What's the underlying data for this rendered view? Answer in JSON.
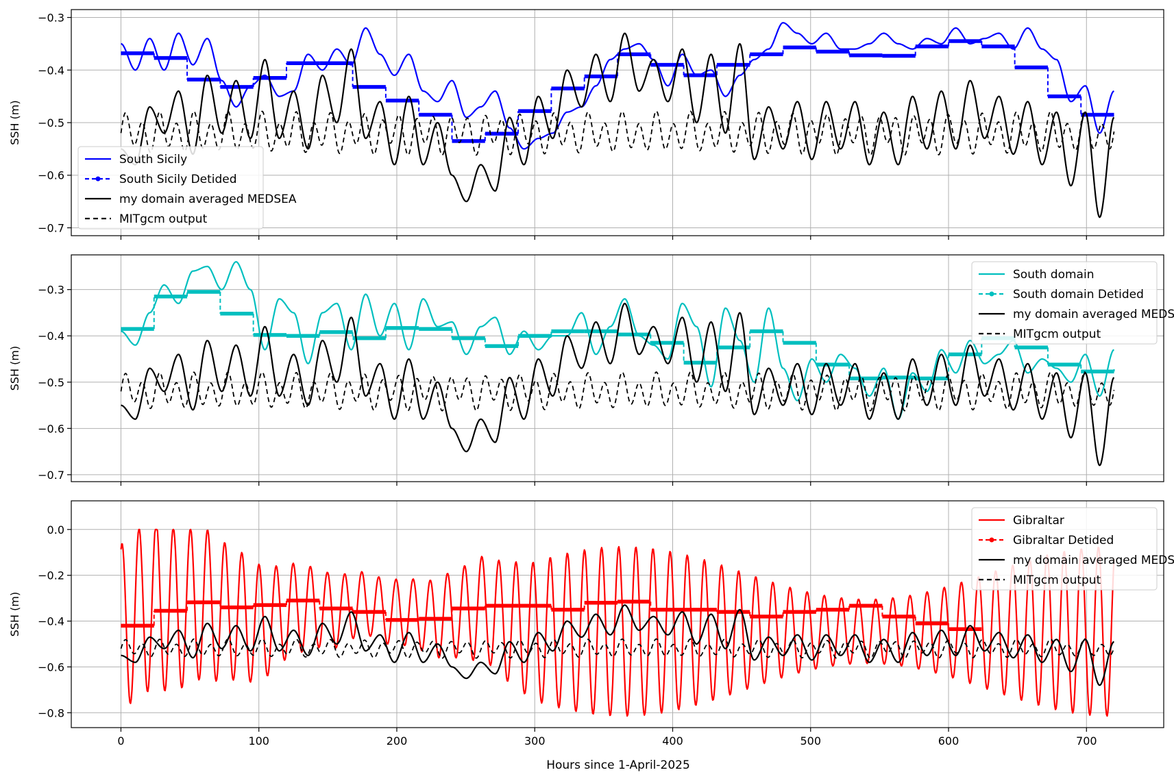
{
  "figure": {
    "xlabel": "Hours since 1-April-2025"
  },
  "colors": {
    "panel1": "#0000ff",
    "panel2": "#00bfbf",
    "panel3": "#ff0000",
    "reference": "#000000"
  },
  "chart_data": [
    {
      "type": "line",
      "ylabel": "SSH (m)",
      "xlim": [
        -36,
        756
      ],
      "ylim": [
        -0.715,
        -0.285
      ],
      "yticks": [
        -0.3,
        -0.4,
        -0.5,
        -0.6,
        -0.7
      ],
      "legend_position": "lower-left",
      "legend": [
        "South Sicily",
        "South Sicily Detided",
        "my domain averaged MEDSEA",
        "MITgcm output"
      ],
      "series": [
        {
          "name": "South Sicily",
          "style": "solid",
          "hourly": [
            -0.35,
            -0.4,
            -0.34,
            -0.4,
            -0.33,
            -0.39,
            -0.34,
            -0.42,
            -0.47,
            -0.43,
            -0.41,
            -0.45,
            -0.44,
            -0.37,
            -0.4,
            -0.36,
            -0.39,
            -0.32,
            -0.37,
            -0.41,
            -0.37,
            -0.44,
            -0.46,
            -0.42,
            -0.49,
            -0.47,
            -0.44,
            -0.51,
            -0.55,
            -0.53,
            -0.52,
            -0.48,
            -0.47,
            -0.43,
            -0.38,
            -0.36,
            -0.35,
            -0.38,
            -0.43,
            -0.37,
            -0.41,
            -0.4,
            -0.45,
            -0.41,
            -0.38,
            -0.36,
            -0.31,
            -0.33,
            -0.35,
            -0.33,
            -0.36,
            -0.36,
            -0.35,
            -0.33,
            -0.35,
            -0.36,
            -0.34,
            -0.35,
            -0.32,
            -0.35,
            -0.34,
            -0.33,
            -0.36,
            -0.32,
            -0.36,
            -0.38,
            -0.46,
            -0.43,
            -0.52,
            -0.44
          ]
        },
        {
          "name": "South Sicily Detided",
          "style": "dashed-dots",
          "daily": [
            -0.368,
            -0.377,
            -0.418,
            -0.432,
            -0.415,
            -0.387,
            -0.387,
            -0.432,
            -0.458,
            -0.485,
            -0.535,
            -0.521,
            -0.478,
            -0.435,
            -0.412,
            -0.37,
            -0.39,
            -0.41,
            -0.39,
            -0.37,
            -0.357,
            -0.365,
            -0.372,
            -0.373,
            -0.355,
            -0.345,
            -0.355,
            -0.395,
            -0.45,
            -0.485
          ]
        },
        {
          "name": "my domain averaged MEDSEA",
          "style": "solid",
          "ref": "medsea"
        },
        {
          "name": "MITgcm output",
          "style": "dashed",
          "ref": "mitgcm"
        }
      ]
    },
    {
      "type": "line",
      "ylabel": "SSH (m)",
      "xlim": [
        -36,
        756
      ],
      "ylim": [
        -0.715,
        -0.225
      ],
      "yticks": [
        -0.3,
        -0.4,
        -0.5,
        -0.6,
        -0.7
      ],
      "legend_position": "upper-right",
      "legend": [
        "South domain",
        "South domain Detided",
        "my domain averaged MEDSEA",
        "MITgcm output"
      ],
      "series": [
        {
          "name": "South domain",
          "style": "solid",
          "hourly": [
            -0.39,
            -0.42,
            -0.35,
            -0.29,
            -0.33,
            -0.26,
            -0.25,
            -0.3,
            -0.24,
            -0.3,
            -0.43,
            -0.32,
            -0.35,
            -0.46,
            -0.35,
            -0.33,
            -0.43,
            -0.31,
            -0.4,
            -0.33,
            -0.43,
            -0.32,
            -0.38,
            -0.37,
            -0.44,
            -0.38,
            -0.36,
            -0.44,
            -0.39,
            -0.43,
            -0.4,
            -0.4,
            -0.35,
            -0.44,
            -0.38,
            -0.32,
            -0.4,
            -0.42,
            -0.45,
            -0.33,
            -0.38,
            -0.51,
            -0.34,
            -0.41,
            -0.5,
            -0.34,
            -0.47,
            -0.54,
            -0.45,
            -0.5,
            -0.44,
            -0.47,
            -0.53,
            -0.47,
            -0.58,
            -0.48,
            -0.52,
            -0.43,
            -0.48,
            -0.41,
            -0.46,
            -0.44,
            -0.41,
            -0.48,
            -0.45,
            -0.47,
            -0.5,
            -0.44,
            -0.53,
            -0.43
          ]
        },
        {
          "name": "South domain Detided",
          "style": "dashed-dots",
          "daily": [
            -0.385,
            -0.315,
            -0.305,
            -0.352,
            -0.398,
            -0.4,
            -0.392,
            -0.405,
            -0.383,
            -0.385,
            -0.405,
            -0.422,
            -0.4,
            -0.39,
            -0.39,
            -0.397,
            -0.415,
            -0.458,
            -0.425,
            -0.39,
            -0.415,
            -0.462,
            -0.492,
            -0.49,
            -0.492,
            -0.44,
            -0.405,
            -0.425,
            -0.462,
            -0.477,
            -0.472
          ]
        },
        {
          "name": "my domain averaged MEDSEA",
          "style": "solid",
          "ref": "medsea"
        },
        {
          "name": "MITgcm output",
          "style": "dashed",
          "ref": "mitgcm"
        }
      ]
    },
    {
      "type": "line",
      "ylabel": "SSH (m)",
      "xlim": [
        -36,
        756
      ],
      "ylim": [
        -0.865,
        0.125
      ],
      "yticks": [
        0.0,
        -0.2,
        -0.4,
        -0.6,
        -0.8
      ],
      "legend_position": "upper-right",
      "legend": [
        "Gibraltar",
        "Gibraltar Detided",
        "my domain averaged MEDSEA",
        "MITgcm output"
      ],
      "series": [
        {
          "name": "Gibraltar",
          "style": "solid",
          "tidal": {
            "period_h": 12.42,
            "mean_offset": -0.01,
            "amp_min": 0.14,
            "amp_max": 0.37,
            "peak_max": 0.0,
            "trough_min": -0.82
          }
        },
        {
          "name": "Gibraltar Detided",
          "style": "dashed-dots",
          "daily": [
            -0.42,
            -0.355,
            -0.318,
            -0.34,
            -0.33,
            -0.31,
            -0.345,
            -0.36,
            -0.395,
            -0.39,
            -0.345,
            -0.333,
            -0.333,
            -0.35,
            -0.32,
            -0.315,
            -0.35,
            -0.35,
            -0.36,
            -0.38,
            -0.36,
            -0.35,
            -0.333,
            -0.38,
            -0.41,
            -0.435
          ]
        },
        {
          "name": "my domain averaged MEDSEA",
          "style": "solid",
          "ref": "medsea"
        },
        {
          "name": "MITgcm output",
          "style": "dashed",
          "ref": "mitgcm"
        }
      ]
    }
  ],
  "shared_series": {
    "medsea": [
      -0.55,
      -0.58,
      -0.47,
      -0.52,
      -0.44,
      -0.56,
      -0.41,
      -0.52,
      -0.42,
      -0.53,
      -0.38,
      -0.53,
      -0.44,
      -0.55,
      -0.41,
      -0.5,
      -0.36,
      -0.53,
      -0.46,
      -0.58,
      -0.45,
      -0.58,
      -0.5,
      -0.6,
      -0.65,
      -0.58,
      -0.63,
      -0.49,
      -0.58,
      -0.45,
      -0.53,
      -0.4,
      -0.47,
      -0.37,
      -0.46,
      -0.33,
      -0.44,
      -0.38,
      -0.46,
      -0.36,
      -0.5,
      -0.37,
      -0.52,
      -0.35,
      -0.57,
      -0.47,
      -0.55,
      -0.46,
      -0.57,
      -0.46,
      -0.55,
      -0.46,
      -0.58,
      -0.48,
      -0.58,
      -0.45,
      -0.55,
      -0.44,
      -0.55,
      -0.42,
      -0.53,
      -0.45,
      -0.56,
      -0.46,
      -0.58,
      -0.48,
      -0.62,
      -0.48,
      -0.68,
      -0.49
    ]
  },
  "mitgcm_model": {
    "mean": -0.52,
    "amp": 0.03,
    "period_h": 12.42
  }
}
